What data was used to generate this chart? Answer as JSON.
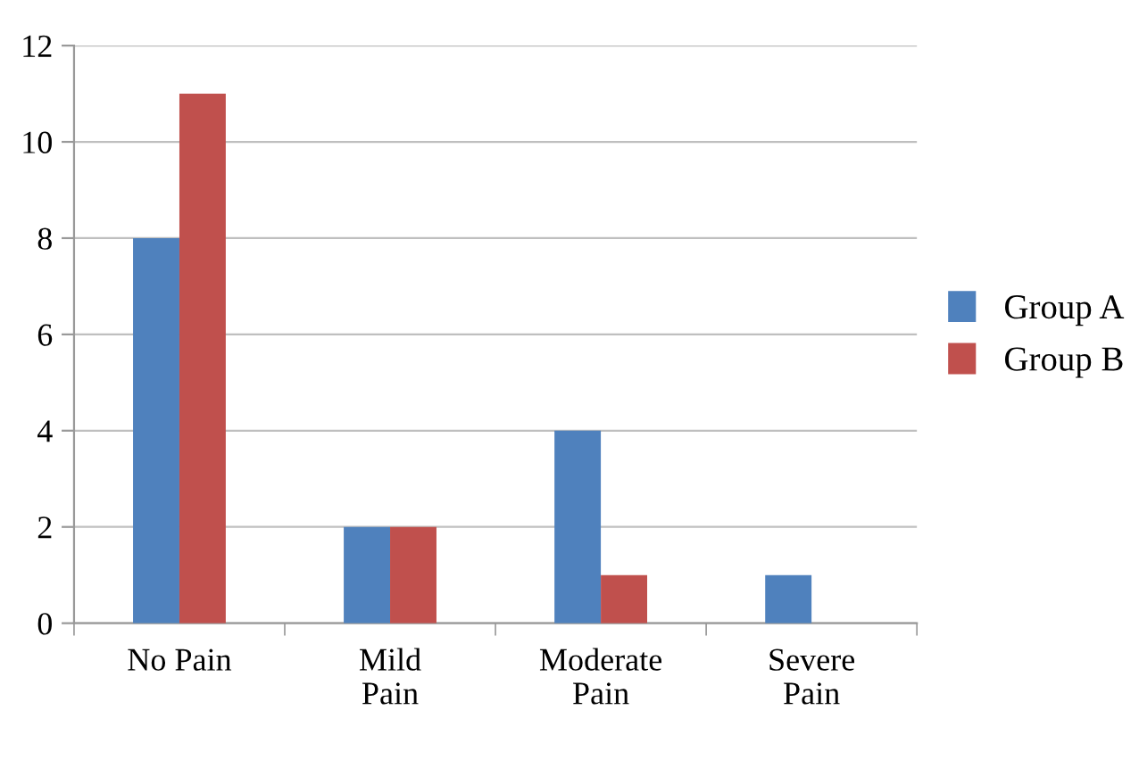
{
  "chart_data": {
    "type": "bar",
    "categories": [
      "No Pain",
      "Mild\nPain",
      "Moderate\nPain",
      "Severe\nPain"
    ],
    "series": [
      {
        "name": "Group A",
        "color": "#4f81bd",
        "values": [
          8,
          2,
          4,
          1
        ]
      },
      {
        "name": "Group B",
        "color": "#c0504d",
        "values": [
          11,
          2,
          1,
          0
        ]
      }
    ],
    "ylim": [
      0,
      12
    ],
    "yticks": [
      0,
      2,
      4,
      6,
      8,
      10,
      12
    ],
    "grid": "y",
    "legend": "right"
  }
}
